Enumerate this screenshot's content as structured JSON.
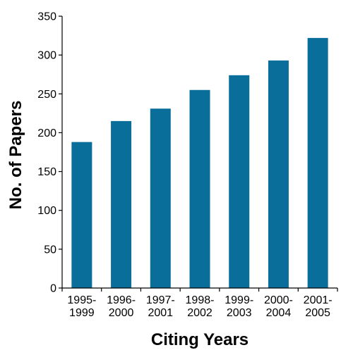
{
  "chart_data": {
    "type": "bar",
    "title": "",
    "xlabel": "Citing Years",
    "ylabel": "No. of Papers",
    "categories": [
      [
        "1995-",
        "1999"
      ],
      [
        "1996-",
        "2000"
      ],
      [
        "1997-",
        "2001"
      ],
      [
        "1998-",
        "2002"
      ],
      [
        "1999-",
        "2003"
      ],
      [
        "2000-",
        "2004"
      ],
      [
        "2001-",
        "2005"
      ]
    ],
    "values": [
      188,
      215,
      231,
      255,
      274,
      293,
      322
    ],
    "ylim": [
      0,
      350
    ],
    "yticks": [
      "0",
      "50",
      "100",
      "150",
      "200",
      "250",
      "300",
      "350"
    ],
    "grid": false,
    "legend": "none",
    "bar_color": "#0a6e9b"
  }
}
